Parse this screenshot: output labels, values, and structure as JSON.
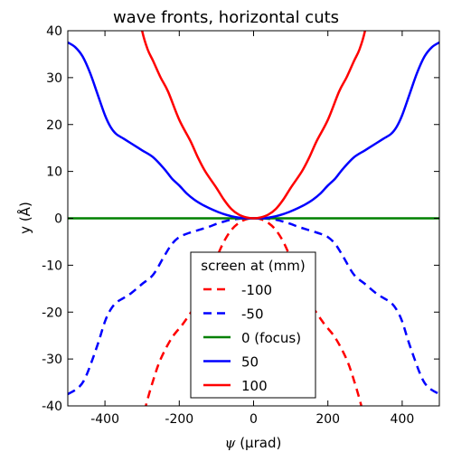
{
  "chart_data": {
    "type": "line",
    "title": "wave fronts, horizontal cuts",
    "xlabel_symbol": "ψ",
    "xlabel_unit": "(μrad)",
    "ylabel": "y (Å)",
    "xlim": [
      -500,
      500
    ],
    "ylim": [
      -40,
      40
    ],
    "xticks": [
      -400,
      -200,
      0,
      200,
      400
    ],
    "xtick_labels": [
      "-400",
      "-200",
      "0",
      "200",
      "400"
    ],
    "yticks": [
      -40,
      -30,
      -20,
      -10,
      0,
      10,
      20,
      30,
      40
    ],
    "ytick_labels": [
      "-40",
      "-30",
      "-20",
      "-10",
      "0",
      "10",
      "20",
      "30",
      "40"
    ],
    "grid": false,
    "legend": {
      "title": "screen at (mm)",
      "placement": "lower-center"
    },
    "series": [
      {
        "name": "-100",
        "color": "#ff0000",
        "style": "dashed",
        "x": [
          -300,
          -290,
          -270,
          -250,
          -220,
          -190,
          -160,
          -140,
          -120,
          -100,
          -80,
          -60,
          -40,
          -20,
          0,
          20,
          40,
          60,
          80,
          100,
          120,
          140,
          160,
          190,
          220,
          250,
          270,
          290,
          300
        ],
        "y": [
          -44,
          -40,
          -34.5,
          -30,
          -25.5,
          -22.5,
          -19,
          -16,
          -12.5,
          -8.5,
          -5,
          -2.5,
          -1,
          -0.2,
          0,
          -0.2,
          -1,
          -2.5,
          -5,
          -8.5,
          -12.5,
          -16,
          -19,
          -22.5,
          -25.5,
          -30,
          -34.5,
          -40,
          -44
        ]
      },
      {
        "name": "-50",
        "color": "#0000ff",
        "style": "dashed",
        "x": [
          -500,
          -470,
          -450,
          -420,
          -400,
          -385,
          -370,
          -350,
          -330,
          -300,
          -270,
          -240,
          -220,
          -200,
          -180,
          -160,
          -140,
          -120,
          -100,
          -80,
          -60,
          -40,
          -20,
          0,
          20,
          40,
          60,
          80,
          100,
          120,
          140,
          160,
          180,
          200,
          220,
          240,
          270,
          300,
          330,
          350,
          370,
          385,
          400,
          420,
          450,
          470,
          500
        ],
        "y": [
          -37.5,
          -36,
          -33.5,
          -27,
          -22,
          -19.5,
          -18,
          -17,
          -16,
          -14,
          -12,
          -8,
          -5.5,
          -4,
          -3.3,
          -2.8,
          -2.3,
          -1.8,
          -1.2,
          -0.7,
          -0.3,
          -0.1,
          0,
          0,
          0,
          -0.1,
          -0.3,
          -0.7,
          -1.2,
          -1.8,
          -2.3,
          -2.8,
          -3.3,
          -4,
          -5.5,
          -8,
          -12,
          -14,
          -16,
          -17,
          -18,
          -19.5,
          -22,
          -27,
          -33.5,
          -36,
          -37.5
        ]
      },
      {
        "name": "0 (focus)",
        "color": "#008000",
        "style": "solid",
        "x": [
          -500,
          500
        ],
        "y": [
          0,
          0
        ]
      },
      {
        "name": "50",
        "color": "#0000ff",
        "style": "solid",
        "x": [
          -500,
          -480,
          -460,
          -440,
          -420,
          -400,
          -385,
          -370,
          -350,
          -330,
          -300,
          -270,
          -240,
          -220,
          -200,
          -180,
          -160,
          -140,
          -120,
          -100,
          -80,
          -60,
          -40,
          -20,
          0,
          20,
          40,
          60,
          80,
          100,
          120,
          140,
          160,
          180,
          200,
          220,
          240,
          270,
          300,
          330,
          350,
          370,
          385,
          400,
          420,
          440,
          460,
          480,
          500
        ],
        "y": [
          37.5,
          36.5,
          34.5,
          31,
          26.5,
          22,
          19.5,
          18,
          17,
          16,
          14.5,
          13,
          10.5,
          8.5,
          7,
          5.3,
          4,
          3,
          2.2,
          1.5,
          0.9,
          0.45,
          0.15,
          0.03,
          0,
          0.03,
          0.15,
          0.45,
          0.9,
          1.5,
          2.2,
          3,
          4,
          5.3,
          7,
          8.5,
          10.5,
          13,
          14.5,
          16,
          17,
          18,
          19.5,
          22,
          26.5,
          31,
          34.5,
          36.5,
          37.5
        ]
      },
      {
        "name": "100",
        "color": "#ff0000",
        "style": "solid",
        "x": [
          -310,
          -300,
          -285,
          -270,
          -250,
          -230,
          -200,
          -170,
          -150,
          -130,
          -100,
          -80,
          -60,
          -40,
          -20,
          0,
          20,
          40,
          60,
          80,
          100,
          130,
          150,
          170,
          200,
          230,
          250,
          270,
          285,
          300,
          310
        ],
        "y": [
          45,
          40,
          36,
          33.5,
          30,
          27,
          21,
          16.5,
          13,
          10,
          6.5,
          4,
          2,
          0.8,
          0.2,
          0,
          0.2,
          0.8,
          2,
          4,
          6.5,
          10,
          13,
          16.5,
          21,
          27,
          30,
          33.5,
          36,
          40,
          45
        ]
      }
    ]
  }
}
